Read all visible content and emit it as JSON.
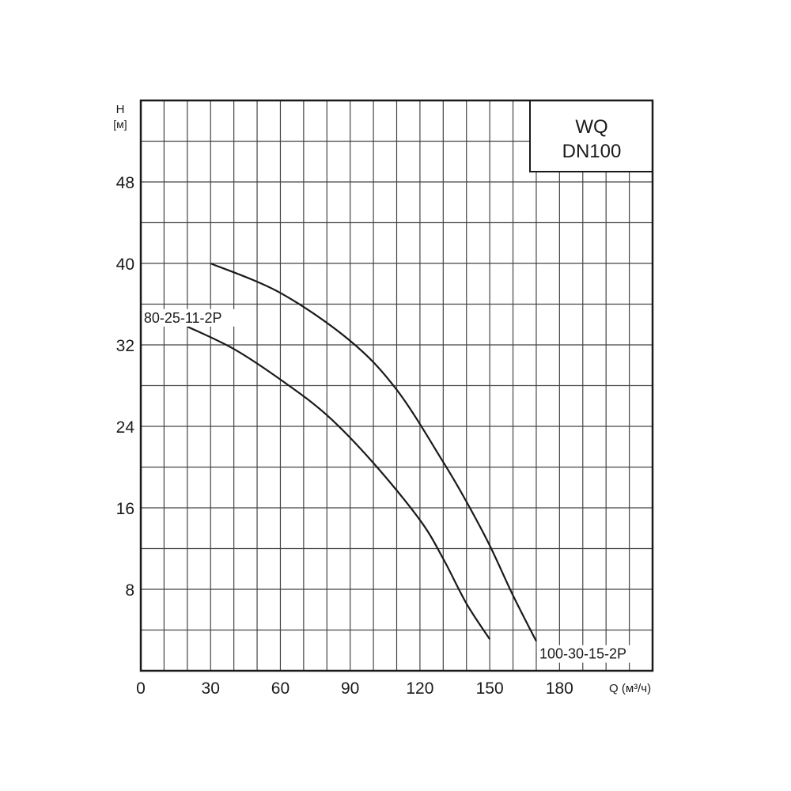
{
  "chart_data": {
    "type": "line",
    "title_box": {
      "line1": "WQ",
      "line2": "DN100"
    },
    "xlabel": "Q (м³/ч)",
    "ylabel_line1": "H",
    "ylabel_line2": "[м]",
    "xlim": [
      0,
      220
    ],
    "ylim": [
      0,
      56
    ],
    "x_ticks": [
      0,
      30,
      60,
      90,
      120,
      150,
      180
    ],
    "y_ticks": [
      8,
      16,
      24,
      32,
      40,
      48
    ],
    "x_grid_step": 10,
    "y_grid_step": 4,
    "grid": true,
    "series": [
      {
        "name": "80-25-11-2P",
        "label_position": "start",
        "points": [
          [
            20,
            33.8
          ],
          [
            40,
            31.6
          ],
          [
            60,
            28.6
          ],
          [
            80,
            25.1
          ],
          [
            100,
            20.4
          ],
          [
            120,
            14.8
          ],
          [
            130,
            11.0
          ],
          [
            140,
            6.6
          ],
          [
            150,
            3.1
          ]
        ]
      },
      {
        "name": "100-30-15-2P",
        "label_position": "end",
        "points": [
          [
            30,
            40.0
          ],
          [
            60,
            37.1
          ],
          [
            90,
            32.4
          ],
          [
            110,
            27.6
          ],
          [
            130,
            20.5
          ],
          [
            140,
            16.6
          ],
          [
            150,
            12.3
          ],
          [
            160,
            7.4
          ],
          [
            170,
            2.9
          ]
        ]
      }
    ],
    "line_color": "#1a1a1a",
    "grid_color": "#444444"
  }
}
